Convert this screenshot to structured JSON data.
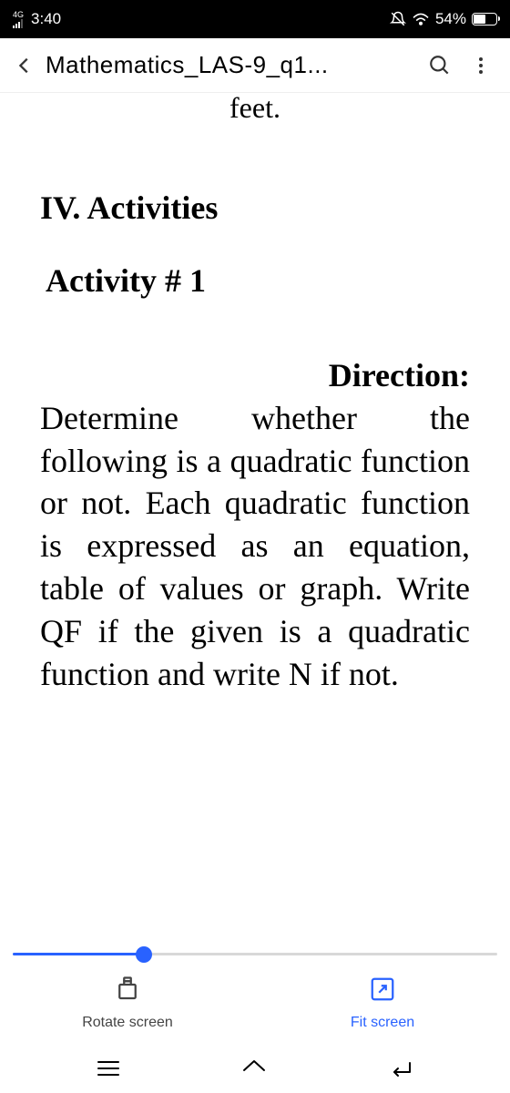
{
  "status": {
    "network_label": "4G",
    "time": "3:40",
    "battery_percent": "54%",
    "battery_fill_pct": 54
  },
  "appbar": {
    "title": "Mathematics_LAS-9_q1..."
  },
  "doc": {
    "fragment_top": "feet.",
    "heading_iv": "IV. Activities",
    "heading_activity": "Activity # 1",
    "direction_label": "Direction:",
    "direction_body": "Determine whether the following is a quadratic function or not. Each quadratic function is expressed as an equation, table of values or graph. Write QF if the given is a quadratic function and write N if not."
  },
  "progress": {
    "value_pct": 27,
    "track_color": "#d8d8d8",
    "fill_color": "#2962ff"
  },
  "actions": {
    "rotate_label": "Rotate screen",
    "fit_label": "Fit screen",
    "accent_color": "#2962ff"
  }
}
